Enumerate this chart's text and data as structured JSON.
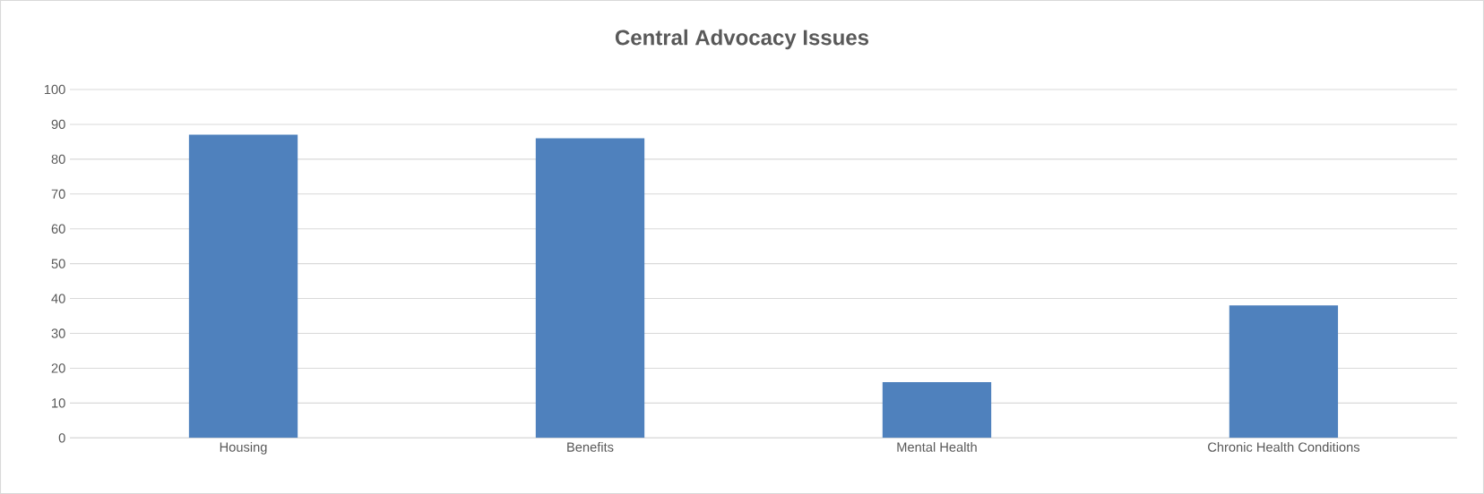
{
  "chart_data": {
    "type": "bar",
    "title": "Central Advocacy Issues",
    "categories": [
      "Housing",
      "Benefits",
      "Mental Health",
      "Chronic Health Conditions"
    ],
    "values": [
      87,
      86,
      16,
      38
    ],
    "color": "#4f81bd",
    "ylim": [
      0,
      100
    ],
    "yticks": [
      0,
      10,
      20,
      30,
      40,
      50,
      60,
      70,
      80,
      90,
      100
    ],
    "grid": "y"
  }
}
